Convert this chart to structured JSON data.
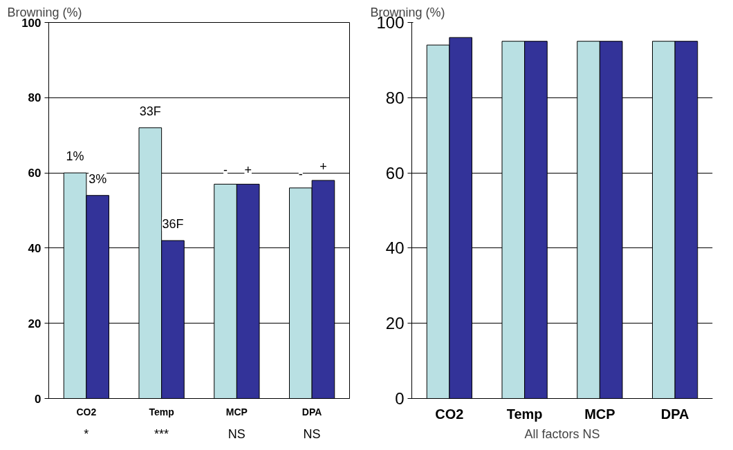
{
  "chart_data": [
    {
      "type": "bar",
      "ylabel": "Browning (%)",
      "categories": [
        "CO2",
        "Temp",
        "MCP",
        "DPA"
      ],
      "series": [
        {
          "color": "#b9e0e3",
          "values": [
            60,
            72,
            57,
            56
          ]
        },
        {
          "color": "#333399",
          "values": [
            54,
            42,
            57,
            58
          ]
        }
      ],
      "ylim": [
        0,
        100
      ],
      "yticks": [
        0,
        20,
        40,
        60,
        80,
        100
      ],
      "grid": "y",
      "legend": false,
      "annotations": [
        "1%",
        "3%",
        "33F",
        "36F",
        "-",
        "+",
        "-",
        "+",
        "*",
        "***",
        "NS",
        "NS"
      ]
    },
    {
      "type": "bar",
      "ylabel": "Browning (%)",
      "xlabel": "All factors NS",
      "categories": [
        "CO2",
        "Temp",
        "MCP",
        "DPA"
      ],
      "series": [
        {
          "color": "#b9e0e3",
          "values": [
            94,
            95,
            95,
            95
          ]
        },
        {
          "color": "#333399",
          "values": [
            96,
            95,
            95,
            95
          ]
        }
      ],
      "ylim": [
        0,
        100
      ],
      "yticks": [
        0,
        20,
        40,
        60,
        80,
        100
      ],
      "grid": "y",
      "legend": false
    }
  ]
}
